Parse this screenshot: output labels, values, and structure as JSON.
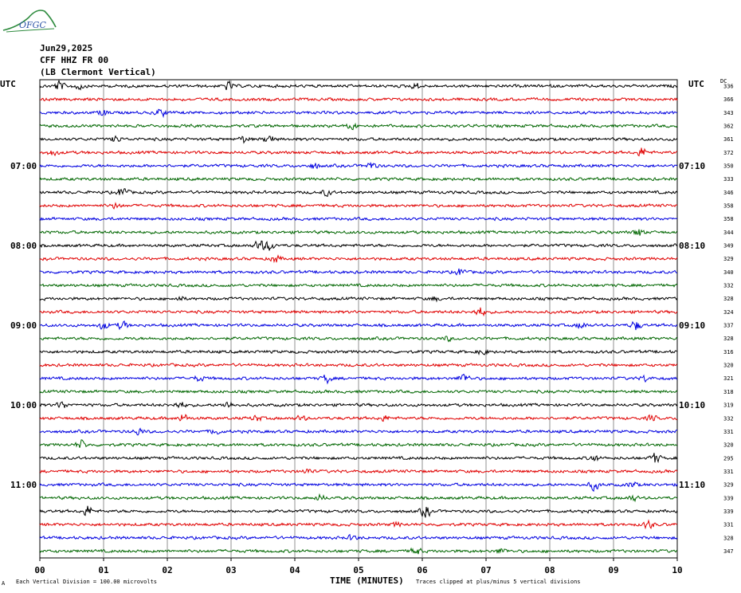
{
  "header": {
    "logo_text": "OFGC",
    "date": "Jun29,2025",
    "station": "CFF HHZ FR 00",
    "location": "(LB  Clermont Vertical)",
    "left_tz": "UTC",
    "right_tz": "UTC",
    "dc_label": "DC"
  },
  "footer": {
    "scale_note": "Each Vertical Division =  100.00 microvolts",
    "clip_note": "Traces clipped at plus/minus 5 vertical divisions",
    "mark": "A"
  },
  "chart_data": {
    "type": "line",
    "title": "",
    "xlabel": "TIME (MINUTES)",
    "ylabel": "",
    "xlim": [
      0,
      10
    ],
    "x_ticks": [
      "00",
      "01",
      "02",
      "03",
      "04",
      "05",
      "06",
      "07",
      "08",
      "09",
      "10"
    ],
    "left_time_labels": [
      {
        "row": 6,
        "label": "07:00"
      },
      {
        "row": 12,
        "label": "08:00"
      },
      {
        "row": 18,
        "label": "09:00"
      },
      {
        "row": 24,
        "label": "10:00"
      },
      {
        "row": 30,
        "label": "11:00"
      }
    ],
    "right_time_labels": [
      {
        "row": 6,
        "label": "07:10"
      },
      {
        "row": 12,
        "label": "08:10"
      },
      {
        "row": 18,
        "label": "09:10"
      },
      {
        "row": 24,
        "label": "10:10"
      },
      {
        "row": 30,
        "label": "11:10"
      }
    ],
    "trace_colors": [
      "#000000",
      "#e00000",
      "#0000e0",
      "#006600"
    ],
    "dc_offsets": [
      336,
      366,
      343,
      362,
      361,
      372,
      350,
      333,
      346,
      358,
      358,
      344,
      349,
      329,
      340,
      332,
      328,
      324,
      337,
      328,
      316,
      320,
      321,
      318,
      319,
      332,
      331,
      320,
      295,
      331,
      329,
      339,
      339,
      331,
      328,
      347
    ],
    "events": [
      {
        "row": 0,
        "minute": 0.3,
        "amp": 7
      },
      {
        "row": 0,
        "minute": 0.6,
        "amp": 5
      },
      {
        "row": 0,
        "minute": 2.95,
        "amp": 6
      },
      {
        "row": 0,
        "minute": 5.9,
        "amp": 4
      },
      {
        "row": 2,
        "minute": 1.0,
        "amp": 4
      },
      {
        "row": 2,
        "minute": 1.9,
        "amp": 6
      },
      {
        "row": 3,
        "minute": 4.9,
        "amp": 4
      },
      {
        "row": 4,
        "minute": 1.2,
        "amp": 4
      },
      {
        "row": 4,
        "minute": 3.2,
        "amp": 5
      },
      {
        "row": 4,
        "minute": 3.6,
        "amp": 6
      },
      {
        "row": 5,
        "minute": 0.2,
        "amp": 4
      },
      {
        "row": 5,
        "minute": 9.45,
        "amp": 7
      },
      {
        "row": 6,
        "minute": 4.3,
        "amp": 4
      },
      {
        "row": 6,
        "minute": 5.2,
        "amp": 5
      },
      {
        "row": 8,
        "minute": 1.3,
        "amp": 7
      },
      {
        "row": 8,
        "minute": 4.5,
        "amp": 4
      },
      {
        "row": 9,
        "minute": 1.2,
        "amp": 4
      },
      {
        "row": 11,
        "minute": 9.4,
        "amp": 6
      },
      {
        "row": 12,
        "minute": 3.45,
        "amp": 9
      },
      {
        "row": 12,
        "minute": 3.6,
        "amp": 7
      },
      {
        "row": 13,
        "minute": 3.7,
        "amp": 5
      },
      {
        "row": 14,
        "minute": 6.6,
        "amp": 5
      },
      {
        "row": 16,
        "minute": 2.2,
        "amp": 3
      },
      {
        "row": 16,
        "minute": 6.2,
        "amp": 3
      },
      {
        "row": 17,
        "minute": 6.9,
        "amp": 7
      },
      {
        "row": 18,
        "minute": 1.0,
        "amp": 5
      },
      {
        "row": 18,
        "minute": 1.3,
        "amp": 6
      },
      {
        "row": 18,
        "minute": 8.5,
        "amp": 5
      },
      {
        "row": 18,
        "minute": 9.35,
        "amp": 7
      },
      {
        "row": 19,
        "minute": 6.4,
        "amp": 3
      },
      {
        "row": 20,
        "minute": 6.95,
        "amp": 4
      },
      {
        "row": 22,
        "minute": 2.5,
        "amp": 4
      },
      {
        "row": 22,
        "minute": 4.5,
        "amp": 6
      },
      {
        "row": 22,
        "minute": 6.65,
        "amp": 7
      },
      {
        "row": 22,
        "minute": 9.5,
        "amp": 4
      },
      {
        "row": 24,
        "minute": 0.35,
        "amp": 5
      },
      {
        "row": 24,
        "minute": 2.2,
        "amp": 5
      },
      {
        "row": 24,
        "minute": 2.95,
        "amp": 5
      },
      {
        "row": 25,
        "minute": 2.25,
        "amp": 6
      },
      {
        "row": 25,
        "minute": 3.4,
        "amp": 4
      },
      {
        "row": 25,
        "minute": 4.1,
        "amp": 4
      },
      {
        "row": 25,
        "minute": 5.4,
        "amp": 4
      },
      {
        "row": 25,
        "minute": 9.6,
        "amp": 4
      },
      {
        "row": 26,
        "minute": 1.55,
        "amp": 5
      },
      {
        "row": 26,
        "minute": 2.75,
        "amp": 4
      },
      {
        "row": 27,
        "minute": 0.65,
        "amp": 6
      },
      {
        "row": 28,
        "minute": 8.7,
        "amp": 4
      },
      {
        "row": 28,
        "minute": 9.65,
        "amp": 7
      },
      {
        "row": 29,
        "minute": 4.2,
        "amp": 4
      },
      {
        "row": 30,
        "minute": 8.7,
        "amp": 7
      },
      {
        "row": 30,
        "minute": 9.3,
        "amp": 4
      },
      {
        "row": 31,
        "minute": 4.4,
        "amp": 4
      },
      {
        "row": 31,
        "minute": 9.3,
        "amp": 4
      },
      {
        "row": 32,
        "minute": 0.75,
        "amp": 8
      },
      {
        "row": 32,
        "minute": 6.05,
        "amp": 9
      },
      {
        "row": 33,
        "minute": 5.6,
        "amp": 3
      },
      {
        "row": 33,
        "minute": 9.55,
        "amp": 6
      },
      {
        "row": 34,
        "minute": 4.9,
        "amp": 4
      },
      {
        "row": 35,
        "minute": 5.9,
        "amp": 6
      },
      {
        "row": 35,
        "minute": 7.25,
        "amp": 4
      }
    ]
  }
}
